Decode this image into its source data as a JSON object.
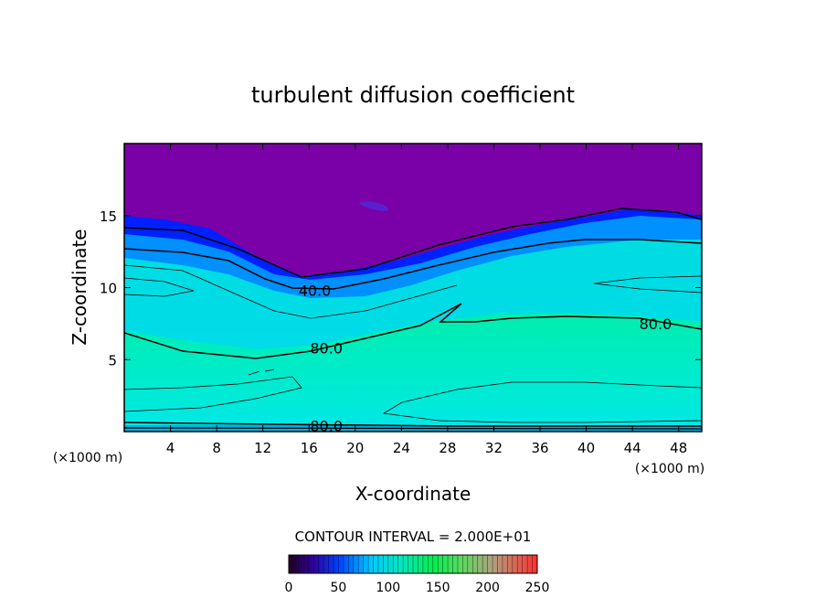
{
  "chart_data": {
    "type": "heatmap",
    "title": "turbulent diffusion coefficient",
    "xlabel": "X-coordinate",
    "ylabel": "Z-coordinate",
    "x_unit_left": "(×1000 m)",
    "x_unit_right": "(×1000 m)",
    "xlim": [
      0,
      50
    ],
    "ylim": [
      0,
      20
    ],
    "x_ticks": [
      4,
      8,
      12,
      16,
      20,
      24,
      28,
      32,
      36,
      40,
      44,
      48
    ],
    "y_ticks": [
      5,
      10,
      15
    ],
    "contour_interval_text": "CONTOUR INTERVAL = 2.000E+01",
    "contour_labels": [
      {
        "text": "40.0",
        "x": 16.5,
        "z": 9.8
      },
      {
        "text": "80.0",
        "x": 17.5,
        "z": 5.8
      },
      {
        "text": "80.0",
        "x": 46.0,
        "z": 7.5
      },
      {
        "text": "80.0",
        "x": 17.5,
        "z": 0.4
      }
    ],
    "colorbar": {
      "range": [
        0,
        250
      ],
      "tick_labels": [
        "0",
        "50",
        "100",
        "150",
        "200",
        "250"
      ]
    },
    "colors": {
      "background_purple": "#7a00a8",
      "blue": "#0000ff",
      "cyan": "#00e8e8",
      "green": "#00f050"
    }
  }
}
